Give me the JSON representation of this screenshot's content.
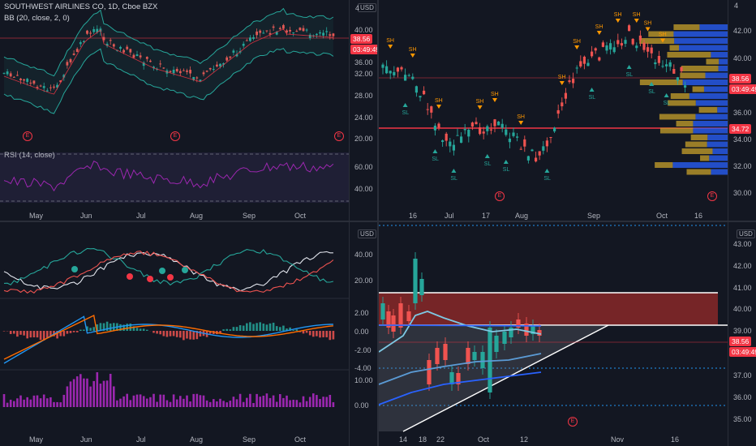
{
  "symbol": {
    "title": "SOUTHWEST AIRLINES CO, 1D, Cboe BZX",
    "indicator_bb": "BB (20, close, 2, 0)",
    "indicator_rsi": "RSI (14, close)"
  },
  "currency": "USD",
  "price": {
    "last": "38.56",
    "countdown": "03:49:49",
    "level": "34.72"
  },
  "panel_tl": {
    "price_ticks": [
      "40.00",
      "36.00",
      "32.00",
      "28.00",
      "24.00",
      "20.00"
    ],
    "rsi_ticks": [
      "60.00",
      "40.00"
    ],
    "months": [
      "May",
      "Jun",
      "Jul",
      "Aug",
      "Sep",
      "Oct"
    ],
    "top_right_tick": "4"
  },
  "panel_tr": {
    "price_ticks": [
      "42.00",
      "40.00",
      "38.00",
      "36.00",
      "34.00",
      "32.00",
      "30.00"
    ],
    "dates": [
      "16",
      "Jul",
      "17",
      "Aug",
      "Sep",
      "Oct",
      "16"
    ],
    "sh_label": "SH",
    "sl_label": "SL",
    "top_right_tick": "4"
  },
  "panel_bl": {
    "ticks_a": [
      "40.00",
      "20.00"
    ],
    "ticks_b": [
      "2.00",
      "0.00",
      "-2.00",
      "-4.00"
    ],
    "ticks_c": [
      "10.00",
      "0.00"
    ],
    "months": [
      "May",
      "Jun",
      "Jul",
      "Aug",
      "Sep",
      "Oct"
    ]
  },
  "panel_br": {
    "price_ticks": [
      "43.00",
      "42.00",
      "41.00",
      "40.00",
      "39.00",
      "37.00",
      "36.00",
      "35.00"
    ],
    "dates": [
      "14",
      "18",
      "22",
      "Oct",
      "12",
      "Nov",
      "16"
    ]
  },
  "event_marker": "E",
  "colors": {
    "up": "#26a69a",
    "down": "#ef5350",
    "bb": "#2962ff",
    "rsi": "#7e57c2",
    "level": "#f23645"
  }
}
